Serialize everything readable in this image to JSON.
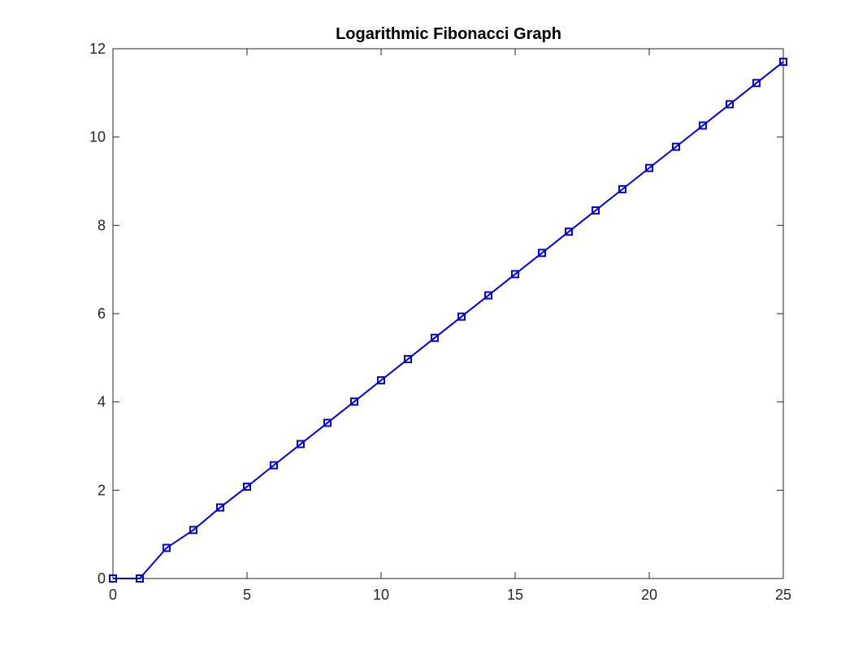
{
  "chart_data": {
    "type": "line",
    "title": "Logarithmic Fibonacci Graph",
    "xlabel": "",
    "ylabel": "",
    "xlim": [
      0,
      25
    ],
    "ylim": [
      0,
      12
    ],
    "xticks": [
      "0",
      "5",
      "10",
      "15",
      "20",
      "25"
    ],
    "yticks": [
      "0",
      "2",
      "4",
      "6",
      "8",
      "10",
      "12"
    ],
    "grid": false,
    "series": [
      {
        "color": "#0000e0",
        "marker": "square",
        "x": [
          0,
          1,
          2,
          3,
          4,
          5,
          6,
          7,
          8,
          9,
          10,
          11,
          12,
          13,
          14,
          15,
          16,
          17,
          18,
          19,
          20,
          21,
          22,
          23,
          24,
          25
        ],
        "y": [
          0,
          0,
          0.693,
          1.099,
          1.609,
          2.079,
          2.565,
          3.045,
          3.526,
          4.007,
          4.489,
          4.97,
          5.451,
          5.932,
          6.413,
          6.894,
          7.375,
          7.856,
          8.337,
          8.818,
          9.299,
          9.78,
          10.261,
          10.742,
          11.223,
          11.704
        ]
      }
    ]
  }
}
